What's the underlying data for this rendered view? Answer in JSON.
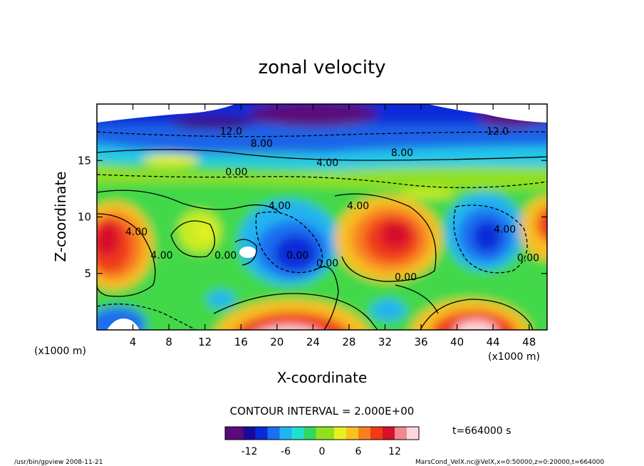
{
  "chart_data": {
    "type": "heatmap",
    "title": "zonal velocity",
    "xlabel": "X-coordinate",
    "ylabel": "Z-coordinate",
    "x_unit": "(x1000 m)",
    "z_unit": "(x1000 m)",
    "xlim": [
      0,
      50
    ],
    "ylim": [
      0,
      20
    ],
    "x_ticks": [
      4,
      8,
      12,
      16,
      20,
      24,
      28,
      32,
      36,
      40,
      44,
      48
    ],
    "y_ticks": [
      5,
      10,
      15
    ],
    "contour_interval_label": "CONTOUR INTERVAL = 2.000E+00",
    "colorbar": {
      "min": -16,
      "max": 16,
      "ticks": [
        -12,
        -6,
        0,
        6,
        12
      ],
      "colors": [
        "#5a0a7a",
        "#1a0a9a",
        "#0a2ad8",
        "#1a6ef0",
        "#20b4f0",
        "#20e0d0",
        "#30d860",
        "#90e020",
        "#e8f020",
        "#f8c020",
        "#f88020",
        "#f03a1a",
        "#d8102a",
        "#f08890",
        "#fcd8dc"
      ]
    },
    "contour_labels": [
      {
        "text": "12.0",
        "x": 14.9,
        "y": 17.3
      },
      {
        "text": "12.0",
        "x": 44.5,
        "y": 17.3
      },
      {
        "text": "8.00",
        "x": 18.3,
        "y": 16.2
      },
      {
        "text": "8.00",
        "x": 33.9,
        "y": 15.4
      },
      {
        "text": "4.00",
        "x": 25.6,
        "y": 14.5
      },
      {
        "text": "0.00",
        "x": 15.5,
        "y": 13.7
      },
      {
        "text": "4.00",
        "x": 20.3,
        "y": 10.7
      },
      {
        "text": "4.00",
        "x": 29.0,
        "y": 10.7
      },
      {
        "text": "4.00",
        "x": 45.3,
        "y": 8.6
      },
      {
        "text": "4.00",
        "x": 4.4,
        "y": 8.4
      },
      {
        "text": "0.00",
        "x": 14.3,
        "y": 6.3
      },
      {
        "text": "0.00",
        "x": 22.3,
        "y": 6.3
      },
      {
        "text": "0.00",
        "x": 25.6,
        "y": 5.6
      },
      {
        "text": "0.00",
        "x": 47.9,
        "y": 6.1
      },
      {
        "text": "4.00",
        "x": 7.2,
        "y": 6.3
      },
      {
        "text": "0.00",
        "x": 34.3,
        "y": 4.4
      }
    ],
    "time_label": "t=664000 s",
    "footer_left": "/usr/bin/gpview  2008-11-21",
    "footer_right": "MarsCond_VelX.nc@VelX,x=0:50000,z=0:20000,t=664000"
  }
}
